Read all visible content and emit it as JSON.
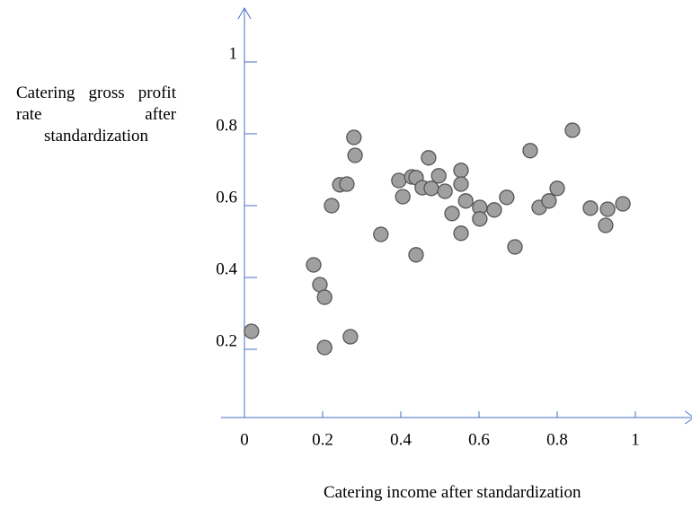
{
  "chart_data": {
    "type": "scatter",
    "x_label": "Catering income after standardization",
    "y_label": "Catering gross profit rate after standardization",
    "xlim": [
      -0.06,
      1.15
    ],
    "ylim": [
      0,
      1.15
    ],
    "xticks": [
      0,
      0.2,
      0.4,
      0.6,
      0.8,
      1
    ],
    "yticks": [
      0.2,
      0.4,
      0.6,
      0.8,
      1
    ],
    "axis_color": "#4472c4",
    "color": "#a0a0a0",
    "x": [
      0.018,
      0.177,
      0.193,
      0.205,
      0.205,
      0.223,
      0.283,
      0.244,
      0.262,
      0.271,
      0.28,
      0.349,
      0.395,
      0.405,
      0.428,
      0.439,
      0.439,
      0.455,
      0.471,
      0.478,
      0.497,
      0.513,
      0.531,
      0.554,
      0.554,
      0.566,
      0.554,
      0.602,
      0.602,
      0.639,
      0.671,
      0.692,
      0.731,
      0.754,
      0.779,
      0.8,
      0.839,
      0.885,
      0.929,
      0.924,
      0.968
    ],
    "values": [
      0.25,
      0.435,
      0.38,
      0.345,
      0.205,
      0.6,
      0.74,
      0.658,
      0.66,
      0.235,
      0.79,
      0.52,
      0.67,
      0.625,
      0.68,
      0.678,
      0.463,
      0.65,
      0.733,
      0.648,
      0.683,
      0.64,
      0.578,
      0.698,
      0.66,
      0.613,
      0.523,
      0.595,
      0.563,
      0.588,
      0.623,
      0.485,
      0.753,
      0.595,
      0.613,
      0.648,
      0.81,
      0.593,
      0.59,
      0.545,
      0.605
    ]
  }
}
